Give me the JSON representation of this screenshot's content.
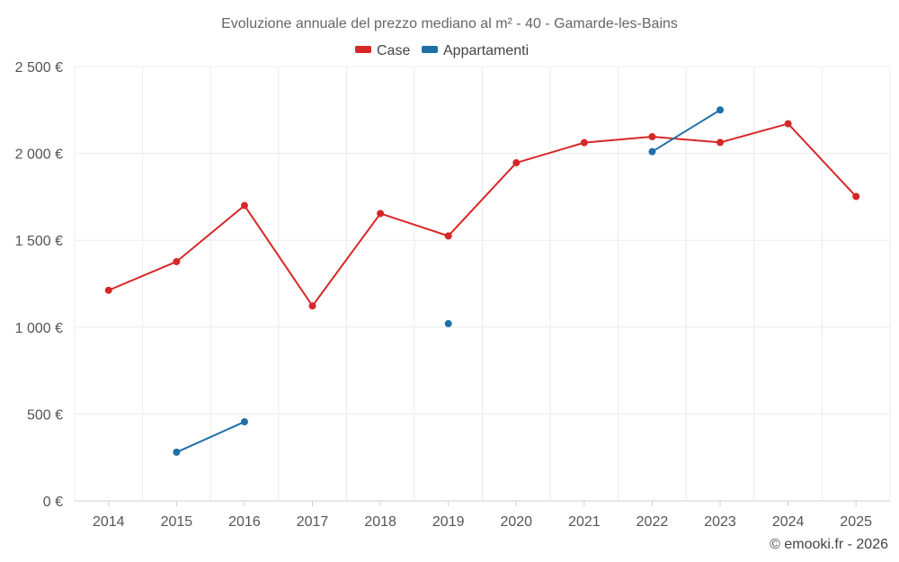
{
  "chart_data": {
    "type": "line",
    "title": "Evoluzione annuale del prezzo mediano al m² - 40 - Gamarde-les-Bains",
    "categories": [
      "2014",
      "2015",
      "2016",
      "2017",
      "2018",
      "2019",
      "2020",
      "2021",
      "2022",
      "2023",
      "2024",
      "2025"
    ],
    "y_ticks": [
      "0 €",
      "500 €",
      "1 000 €",
      "1 500 €",
      "2 000 €",
      "2 500 €"
    ],
    "ylim": [
      0,
      2500
    ],
    "grid": true,
    "legend_position": "top-center",
    "series": [
      {
        "name": "Case",
        "color": "#d62728",
        "values": [
          1212,
          1377,
          1700,
          1122,
          1654,
          1525,
          1946,
          2062,
          2096,
          2063,
          2171,
          1752
        ]
      },
      {
        "name": "Appartamenti",
        "color": "#1f6fa8",
        "values": [
          null,
          280,
          455,
          null,
          null,
          1020,
          null,
          null,
          2010,
          2250,
          null,
          null
        ]
      }
    ],
    "credit": "© emooki.fr - 2026"
  }
}
